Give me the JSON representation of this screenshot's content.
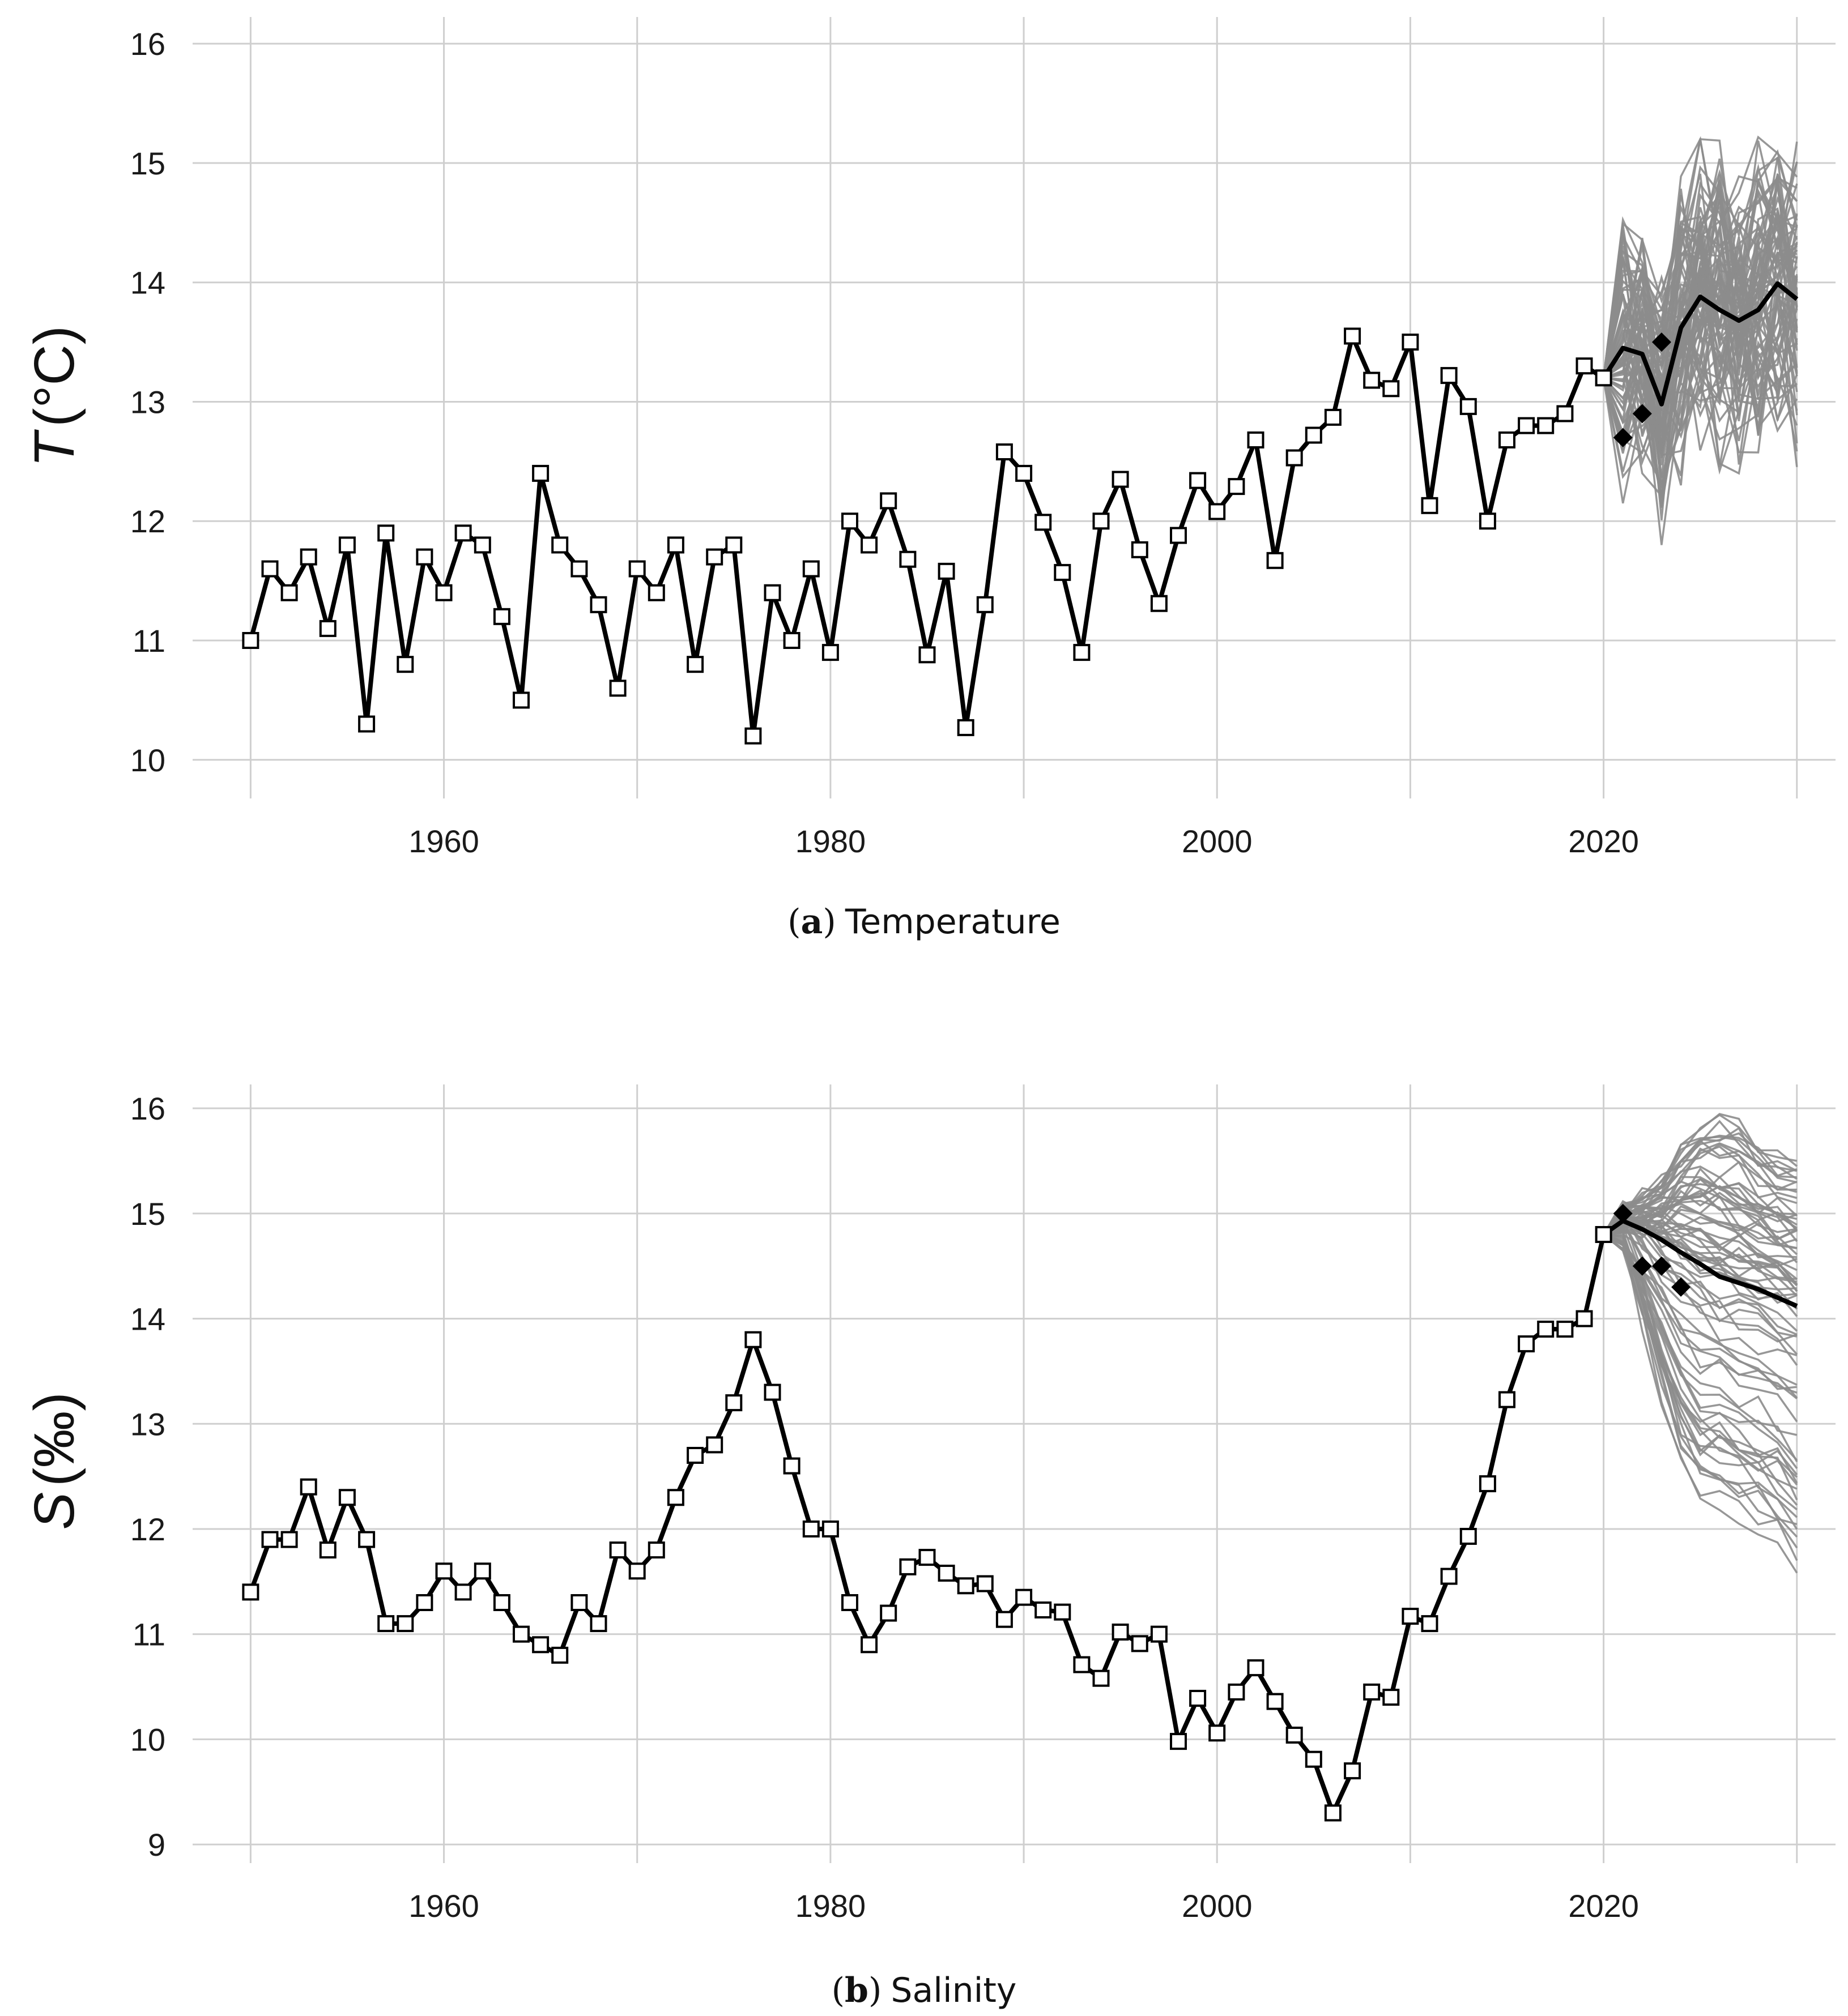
{
  "chart_data": [
    {
      "type": "line",
      "id": "temperature",
      "title": "",
      "caption_letter": "a",
      "caption_text": "Temperature",
      "ylabel_var": "T",
      "ylabel_unit": "(°C)",
      "xlabel": "",
      "xlim": [
        1947,
        2032
      ],
      "ylim": [
        9.7,
        16.2
      ],
      "xticks": [
        1960,
        1980,
        2000,
        2020
      ],
      "yticks": [
        10,
        11,
        12,
        13,
        14,
        15,
        16
      ],
      "xgrid_minor": [
        1950,
        1970,
        1990,
        2010,
        2030
      ],
      "grid": true,
      "x": [
        1950,
        1951,
        1952,
        1953,
        1954,
        1955,
        1956,
        1957,
        1958,
        1959,
        1960,
        1961,
        1962,
        1963,
        1964,
        1965,
        1966,
        1967,
        1968,
        1969,
        1970,
        1971,
        1972,
        1973,
        1974,
        1975,
        1976,
        1977,
        1978,
        1979,
        1980,
        1981,
        1982,
        1983,
        1984,
        1985,
        1986,
        1987,
        1988,
        1989,
        1990,
        1991,
        1992,
        1993,
        1994,
        1995,
        1996,
        1997,
        1998,
        1999,
        2000,
        2001,
        2002,
        2003,
        2004,
        2005,
        2006,
        2007,
        2008,
        2009,
        2010,
        2011,
        2012,
        2013,
        2014,
        2015,
        2016,
        2017,
        2018,
        2019,
        2020
      ],
      "values": [
        11.0,
        11.6,
        11.4,
        11.7,
        11.1,
        11.8,
        10.3,
        11.9,
        10.8,
        11.7,
        11.4,
        11.9,
        11.8,
        11.2,
        10.5,
        12.4,
        11.8,
        11.6,
        11.3,
        10.6,
        11.6,
        11.4,
        11.8,
        10.8,
        11.7,
        11.8,
        10.2,
        11.4,
        11.0,
        11.6,
        10.9,
        12.0,
        11.8,
        12.17,
        11.68,
        10.88,
        11.58,
        10.27,
        11.3,
        12.58,
        12.4,
        11.99,
        11.57,
        10.9,
        12.0,
        12.35,
        11.76,
        11.31,
        11.88,
        12.34,
        12.08,
        12.29,
        12.68,
        11.67,
        12.53,
        12.72,
        12.87,
        13.55,
        13.18,
        13.11,
        13.5,
        12.13,
        13.22,
        12.96,
        12.0,
        12.68,
        12.8,
        12.8,
        12.9,
        13.3,
        13.2
      ],
      "forecast_x": [
        2020,
        2021,
        2022,
        2023,
        2024,
        2025,
        2026,
        2027,
        2028,
        2029,
        2030
      ],
      "forecast_mean": [
        13.2,
        13.45,
        13.4,
        12.98,
        13.62,
        13.88,
        13.77,
        13.68,
        13.77,
        13.99,
        13.86
      ],
      "forecast_observed_x": [
        2021,
        2022,
        2023
      ],
      "forecast_observed": [
        12.7,
        12.9,
        13.5
      ],
      "ensemble": {
        "members": 80,
        "band_low": [
          13.2,
          12.1,
          12.4,
          11.8,
          12.3,
          12.2,
          12.3,
          12.4,
          12.3,
          12.6,
          12.3
        ],
        "band_high": [
          13.2,
          14.8,
          14.8,
          14.5,
          15.3,
          15.2,
          15.3,
          15.4,
          15.3,
          15.5,
          15.3
        ]
      }
    },
    {
      "type": "line",
      "id": "salinity",
      "title": "",
      "caption_letter": "b",
      "caption_text": "Salinity",
      "ylabel_var": "S",
      "ylabel_unit": "(‰)",
      "xlabel": "",
      "xlim": [
        1947,
        2032
      ],
      "ylim": [
        8.85,
        16.2
      ],
      "xticks": [
        1960,
        1980,
        2000,
        2020
      ],
      "yticks": [
        9,
        10,
        11,
        12,
        13,
        14,
        15,
        16
      ],
      "xgrid_minor": [
        1950,
        1970,
        1990,
        2010,
        2030
      ],
      "grid": true,
      "x": [
        1950,
        1951,
        1952,
        1953,
        1954,
        1955,
        1956,
        1957,
        1958,
        1959,
        1960,
        1961,
        1962,
        1963,
        1964,
        1965,
        1966,
        1967,
        1968,
        1969,
        1970,
        1971,
        1972,
        1973,
        1974,
        1975,
        1976,
        1977,
        1978,
        1979,
        1980,
        1981,
        1982,
        1983,
        1984,
        1985,
        1986,
        1987,
        1988,
        1989,
        1990,
        1991,
        1992,
        1993,
        1994,
        1995,
        1996,
        1997,
        1998,
        1999,
        2000,
        2001,
        2002,
        2003,
        2004,
        2005,
        2006,
        2007,
        2008,
        2009,
        2010,
        2011,
        2012,
        2013,
        2014,
        2015,
        2016,
        2017,
        2018,
        2019,
        2020
      ],
      "values": [
        11.4,
        11.9,
        11.9,
        12.4,
        11.8,
        12.3,
        11.9,
        11.1,
        11.1,
        11.3,
        11.6,
        11.4,
        11.6,
        11.3,
        11.0,
        10.9,
        10.8,
        11.3,
        11.1,
        11.8,
        11.6,
        11.8,
        12.3,
        12.7,
        12.8,
        13.2,
        13.8,
        13.3,
        12.6,
        12.0,
        12.0,
        11.3,
        10.9,
        11.2,
        11.64,
        11.73,
        11.58,
        11.46,
        11.48,
        11.14,
        11.35,
        11.23,
        11.21,
        10.71,
        10.58,
        11.02,
        10.91,
        11.0,
        9.98,
        10.39,
        10.06,
        10.45,
        10.68,
        10.36,
        10.04,
        9.81,
        9.3,
        9.7,
        10.45,
        10.4,
        11.17,
        11.1,
        11.55,
        11.93,
        12.43,
        13.23,
        13.76,
        13.9,
        13.9,
        14.0,
        14.8
      ],
      "forecast_x": [
        2020,
        2021,
        2022,
        2023,
        2024,
        2025,
        2026,
        2027,
        2028,
        2029,
        2030
      ],
      "forecast_mean": [
        14.8,
        14.93,
        14.85,
        14.75,
        14.63,
        14.52,
        14.4,
        14.34,
        14.28,
        14.2,
        14.12
      ],
      "forecast_observed_x": [
        2021,
        2022,
        2023,
        2024
      ],
      "forecast_observed": [
        15.0,
        14.5,
        14.5,
        14.3
      ],
      "ensemble": {
        "members": 80,
        "band_low": [
          14.8,
          13.6,
          12.6,
          12.1,
          12.0,
          11.9,
          11.9,
          11.8,
          11.7,
          11.6,
          11.3
        ],
        "band_high": [
          14.8,
          15.3,
          15.5,
          15.6,
          15.8,
          15.9,
          15.95,
          15.9,
          15.7,
          15.6,
          15.5
        ]
      }
    }
  ]
}
